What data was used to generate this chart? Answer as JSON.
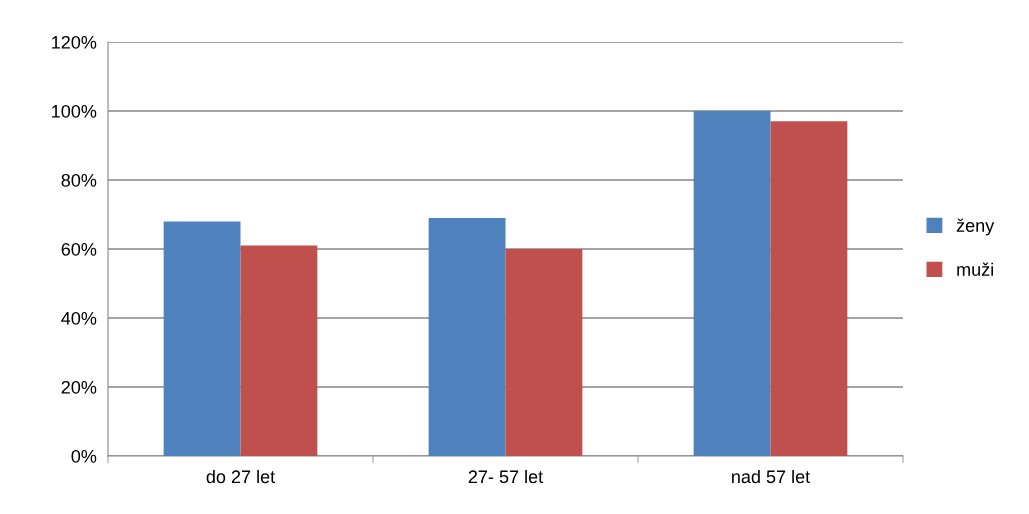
{
  "chart_data": {
    "type": "bar",
    "categories": [
      "do 27 let",
      "27- 57 let",
      "nad 57 let"
    ],
    "series": [
      {
        "name": "ženy",
        "color": "#4f81bd",
        "values": [
          68,
          69,
          100
        ]
      },
      {
        "name": "muži",
        "color": "#c0504d",
        "values": [
          61,
          60,
          97
        ]
      }
    ],
    "ylim": [
      0,
      120
    ],
    "yticks": [
      {
        "value": 0,
        "label": "0%"
      },
      {
        "value": 20,
        "label": "20%"
      },
      {
        "value": 40,
        "label": "40%"
      },
      {
        "value": 60,
        "label": "60%"
      },
      {
        "value": 80,
        "label": "80%"
      },
      {
        "value": 100,
        "label": "100%"
      },
      {
        "value": 120,
        "label": "120%"
      }
    ],
    "grid": "y",
    "legend": "right"
  }
}
